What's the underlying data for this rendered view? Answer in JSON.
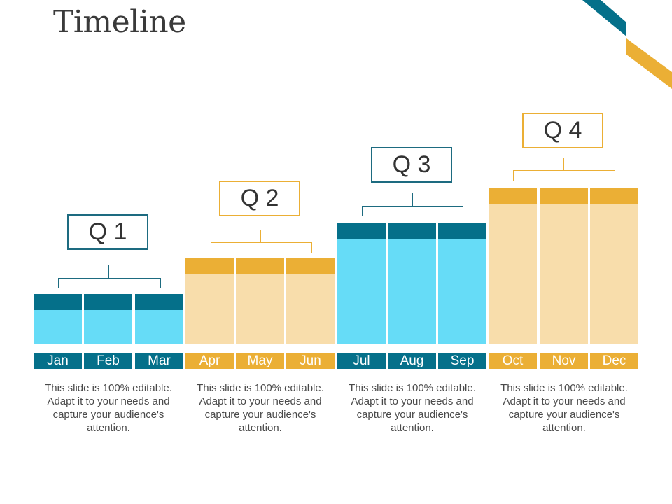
{
  "title": "Timeline",
  "colors": {
    "teal_dark": "#05708a",
    "teal_light": "#66dcf7",
    "gold": "#ebaf35",
    "gold_light": "#f8ddab",
    "teal_border": "#1d6b80",
    "gold_border": "#ebaf35"
  },
  "quarters": [
    {
      "label": "Q 1",
      "theme": "teal",
      "months": [
        "Jan",
        "Feb",
        "Mar"
      ],
      "level": 1,
      "description": "This slide is 100% editable. Adapt it to your needs and capture your audience's attention."
    },
    {
      "label": "Q 2",
      "theme": "gold",
      "months": [
        "Apr",
        "May",
        "Jun"
      ],
      "level": 2,
      "description": "This slide is 100% editable. Adapt it to your needs and capture your audience's attention."
    },
    {
      "label": "Q 3",
      "theme": "teal",
      "months": [
        "Jul",
        "Aug",
        "Sep"
      ],
      "level": 3,
      "description": "This slide is 100% editable. Adapt it to your needs and capture your audience's attention."
    },
    {
      "label": "Q 4",
      "theme": "gold",
      "months": [
        "Oct",
        "Nov",
        "Dec"
      ],
      "level": 4,
      "description": "This slide is 100% editable. Adapt it to your needs and capture your audience's attention."
    }
  ]
}
